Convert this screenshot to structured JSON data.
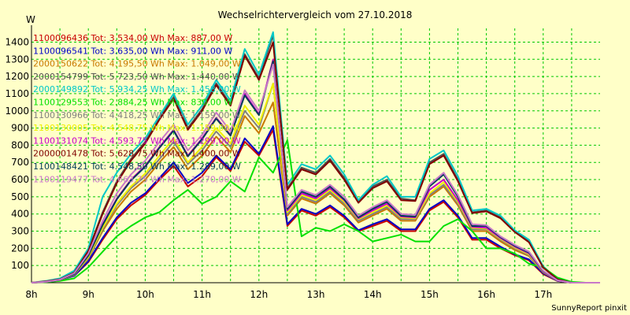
{
  "chart_data": {
    "type": "line",
    "title": "Wechselrichtervergleich vom 27.10.2018",
    "ylabel": "W",
    "footer": "SunnyReport pinxit",
    "grid": true,
    "ylim": [
      0,
      1480
    ],
    "xlim": [
      8,
      18
    ],
    "yticks": [
      100,
      200,
      300,
      400,
      500,
      600,
      700,
      800,
      900,
      1000,
      1100,
      1200,
      1300,
      1400
    ],
    "xticks": [
      8,
      9,
      10,
      11,
      12,
      13,
      14,
      15,
      16,
      17
    ],
    "xtick_labels": [
      "8h",
      "9h",
      "10h",
      "11h",
      "12h",
      "13h",
      "14h",
      "15h",
      "16h",
      "17h"
    ],
    "x": [
      8.0,
      8.25,
      8.5,
      8.75,
      9.0,
      9.25,
      9.5,
      9.75,
      10.0,
      10.25,
      10.5,
      10.75,
      11.0,
      11.25,
      11.5,
      11.75,
      12.0,
      12.25,
      12.5,
      12.75,
      13.0,
      13.25,
      13.5,
      13.75,
      14.0,
      14.25,
      14.5,
      14.75,
      15.0,
      15.25,
      15.5,
      15.75,
      16.0,
      16.25,
      16.5,
      16.75,
      17.0,
      17.25,
      17.5,
      17.75,
      18.0
    ],
    "series": [
      {
        "name": "1100096436",
        "legend": "1100096436 Tot: 3.534,00 Wh Max: 887,00 W",
        "color": "#c80000",
        "values": [
          0,
          5,
          15,
          40,
          120,
          250,
          370,
          450,
          510,
          600,
          680,
          560,
          620,
          730,
          650,
          820,
          740,
          890,
          330,
          420,
          390,
          440,
          380,
          300,
          330,
          360,
          300,
          300,
          420,
          470,
          380,
          250,
          250,
          200,
          160,
          130,
          50,
          10,
          0,
          0,
          0
        ]
      },
      {
        "name": "1100096541",
        "legend": "1100096541 Tot: 3.635,00 Wh Max: 911,00 W",
        "color": "#0000c8",
        "values": [
          0,
          5,
          15,
          40,
          125,
          260,
          380,
          465,
          520,
          610,
          700,
          580,
          640,
          740,
          660,
          840,
          750,
          911,
          340,
          430,
          400,
          450,
          390,
          305,
          340,
          370,
          310,
          310,
          430,
          480,
          390,
          260,
          260,
          210,
          165,
          135,
          55,
          10,
          0,
          0,
          0
        ]
      },
      {
        "name": "2000150622",
        "legend": "2000150622 Tot: 4.195,50 Wh Max: 1.049,00 W",
        "color": "#c87800",
        "values": [
          0,
          5,
          15,
          45,
          140,
          300,
          430,
          530,
          600,
          700,
          790,
          660,
          740,
          850,
          760,
          970,
          870,
          1049,
          390,
          490,
          460,
          520,
          450,
          350,
          390,
          430,
          360,
          360,
          500,
          560,
          450,
          300,
          300,
          240,
          190,
          155,
          60,
          12,
          0,
          0,
          0
        ]
      },
      {
        "name": "2000154799",
        "legend": "2000154799 Tot: 5.723,50 Wh Max: 1.440,00 W",
        "color": "#505050",
        "values": [
          0,
          8,
          20,
          60,
          190,
          410,
          590,
          720,
          820,
          960,
          1080,
          900,
          1010,
          1160,
          1040,
          1330,
          1190,
          1440,
          550,
          670,
          640,
          720,
          610,
          470,
          560,
          600,
          490,
          480,
          700,
          750,
          600,
          410,
          420,
          380,
          300,
          240,
          90,
          20,
          0,
          0,
          0
        ]
      },
      {
        "name": "2000149892",
        "legend": "2000149892 Tot: 5.934,25 Wh Max: 1.458,00 W",
        "color": "#00c8c8",
        "values": [
          0,
          10,
          25,
          70,
          200,
          500,
          640,
          750,
          840,
          970,
          1100,
          920,
          1030,
          1180,
          1060,
          1360,
          1210,
          1458,
          570,
          690,
          660,
          740,
          630,
          480,
          570,
          620,
          500,
          500,
          720,
          770,
          620,
          420,
          430,
          390,
          305,
          250,
          95,
          20,
          0,
          0,
          0
        ]
      },
      {
        "name": "1100129553",
        "legend": "1100129553 Tot: 2.884,25 Wh Max: 830,00 W",
        "color": "#00e000",
        "values": [
          0,
          3,
          10,
          25,
          90,
          180,
          270,
          330,
          380,
          410,
          480,
          540,
          460,
          500,
          590,
          530,
          730,
          640,
          830,
          270,
          320,
          300,
          340,
          300,
          240,
          260,
          280,
          240,
          240,
          330,
          370,
          300,
          200,
          200,
          170,
          110,
          90,
          30,
          5,
          0,
          0
        ]
      },
      {
        "name": "1100130966",
        "legend": "1100130966 Tot: 4.418,25 Wh Max: 1.159,00 W",
        "color": "#808080",
        "values": [
          0,
          5,
          15,
          45,
          145,
          310,
          450,
          550,
          620,
          720,
          820,
          690,
          770,
          880,
          790,
          1000,
          900,
          1159,
          400,
          500,
          470,
          530,
          460,
          360,
          400,
          440,
          370,
          370,
          510,
          570,
          460,
          310,
          310,
          250,
          200,
          160,
          62,
          12,
          0,
          0,
          0
        ]
      },
      {
        "name": "1100130005",
        "legend": "1100130005 Tot: 4.548,75 Wh Max: 1.159,00 W",
        "color": "#f0f000",
        "values": [
          0,
          5,
          15,
          48,
          150,
          320,
          460,
          560,
          635,
          740,
          840,
          700,
          790,
          900,
          810,
          1030,
          920,
          1159,
          410,
          510,
          480,
          540,
          470,
          370,
          410,
          450,
          380,
          375,
          520,
          585,
          470,
          320,
          315,
          255,
          205,
          165,
          64,
          13,
          0,
          0,
          0
        ]
      },
      {
        "name": "1100131074",
        "legend": "1100131074 Tot: 4.593,75 Wh Max: 1.299,00 W",
        "color": "#c800c8",
        "values": [
          0,
          5,
          16,
          50,
          160,
          340,
          490,
          600,
          680,
          790,
          890,
          740,
          840,
          960,
          860,
          1100,
          980,
          1299,
          420,
          520,
          490,
          550,
          480,
          375,
          420,
          460,
          385,
          380,
          540,
          600,
          480,
          325,
          320,
          260,
          210,
          170,
          66,
          13,
          0,
          0,
          0
        ]
      },
      {
        "name": "2000001478",
        "legend": "2000001478 Tot: 5.628,75 Wh Max: 1.400,00 W",
        "color": "#800000",
        "values": [
          0,
          8,
          20,
          58,
          185,
          400,
          580,
          710,
          810,
          950,
          1070,
          890,
          1000,
          1150,
          1030,
          1320,
          1180,
          1400,
          540,
          660,
          630,
          710,
          600,
          465,
          550,
          590,
          480,
          475,
          690,
          740,
          590,
          405,
          415,
          375,
          295,
          235,
          88,
          20,
          0,
          0,
          0
        ]
      },
      {
        "name": "1100148421",
        "legend": "1100148421 Tot: 4.548,50 Wh Max: 1.289,00 W",
        "color": "#003c5a",
        "values": [
          0,
          5,
          16,
          50,
          158,
          335,
          485,
          595,
          675,
          785,
          885,
          735,
          835,
          955,
          855,
          1090,
          975,
          1289,
          430,
          530,
          500,
          560,
          485,
          380,
          430,
          470,
          390,
          385,
          560,
          630,
          500,
          330,
          330,
          265,
          215,
          175,
          68,
          14,
          0,
          0,
          0
        ]
      },
      {
        "name": "1100119477",
        "legend": "1100119477 Tot: 4.663,75 Wh Max: 1.270,00 W",
        "color": "#c878c8",
        "values": [
          0,
          6,
          18,
          55,
          170,
          360,
          520,
          630,
          710,
          820,
          920,
          770,
          860,
          990,
          880,
          1120,
          1000,
          1270,
          440,
          540,
          510,
          570,
          500,
          390,
          440,
          480,
          400,
          395,
          570,
          640,
          510,
          340,
          335,
          270,
          220,
          180,
          70,
          14,
          0,
          0,
          0
        ]
      }
    ]
  }
}
